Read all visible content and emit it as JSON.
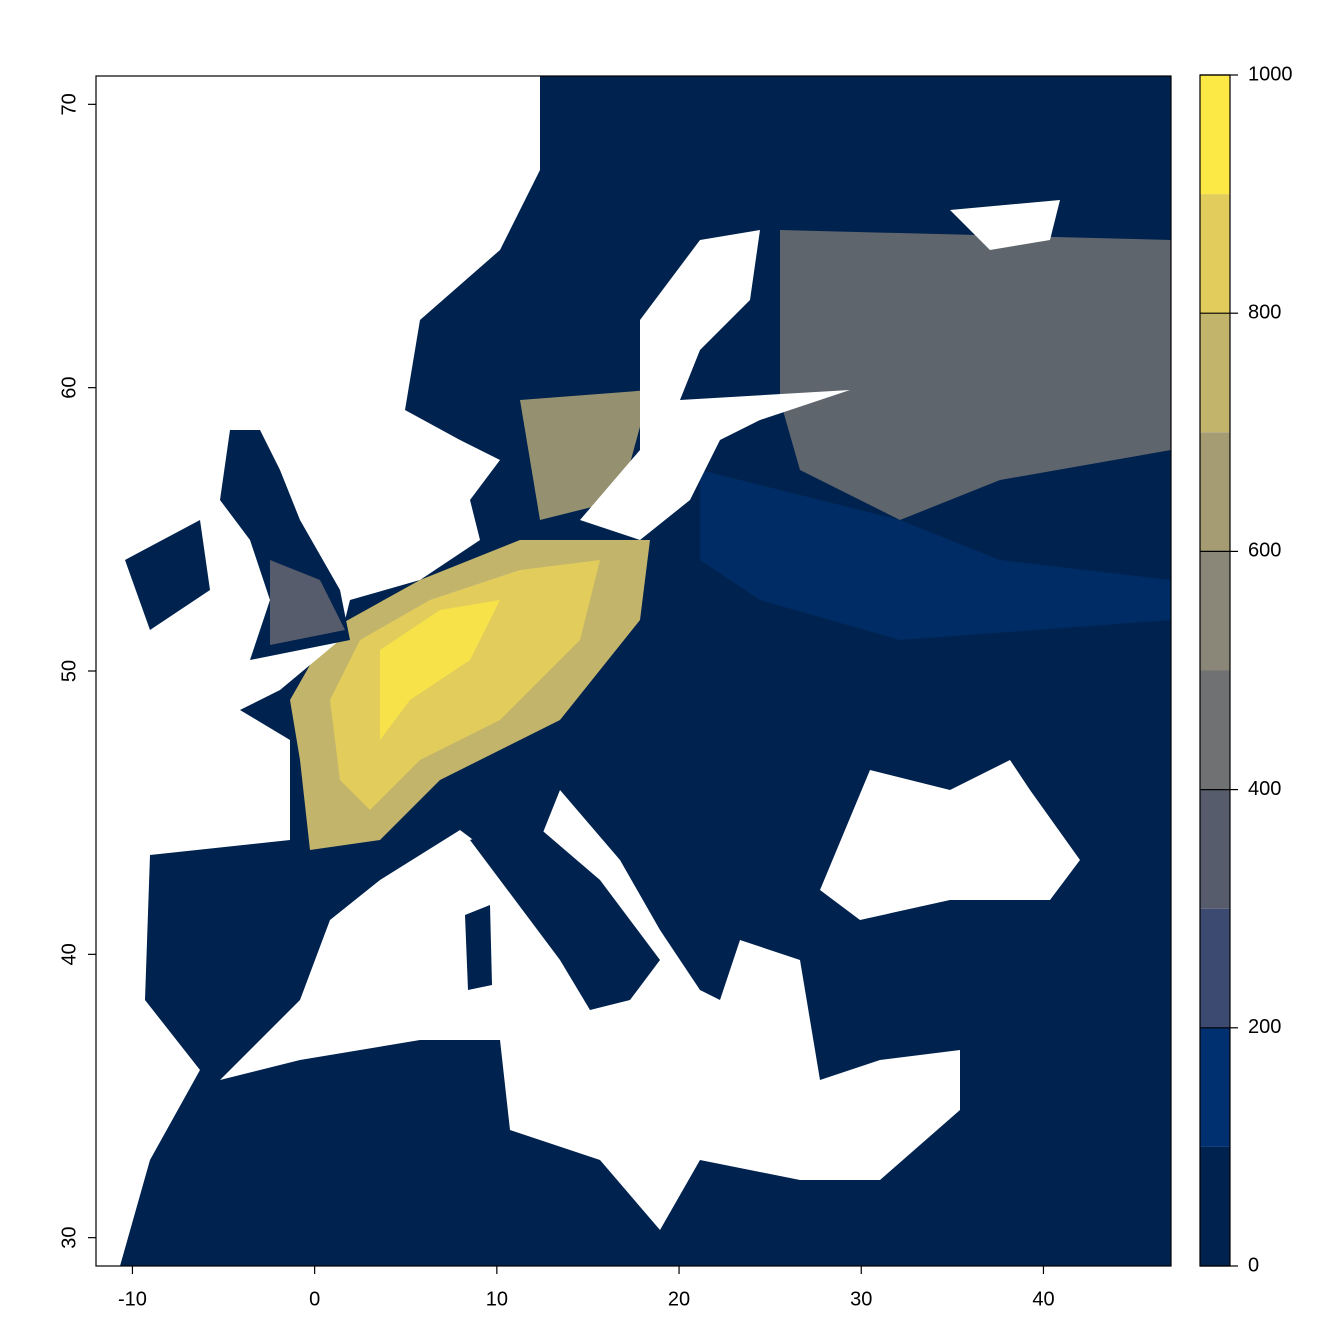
{
  "chart_data": {
    "type": "raster",
    "xlim": [
      -12,
      47
    ],
    "ylim": [
      29,
      71
    ],
    "xticks": [
      -10,
      0,
      10,
      20,
      30,
      40
    ],
    "yticks": [
      30,
      40,
      50,
      60,
      70
    ],
    "legend": {
      "zlim": [
        0,
        1000
      ],
      "breaks": [
        0,
        100,
        200,
        300,
        400,
        500,
        600,
        700,
        800,
        900,
        1000
      ],
      "colors": [
        "#00224e",
        "#00306f",
        "#3c4a72",
        "#575c6d",
        "#707173",
        "#8a8779",
        "#a59c74",
        "#c3b46c",
        "#e2cc5b",
        "#fde945"
      ],
      "ticks": [
        0,
        200,
        400,
        600,
        800,
        1000
      ]
    }
  }
}
